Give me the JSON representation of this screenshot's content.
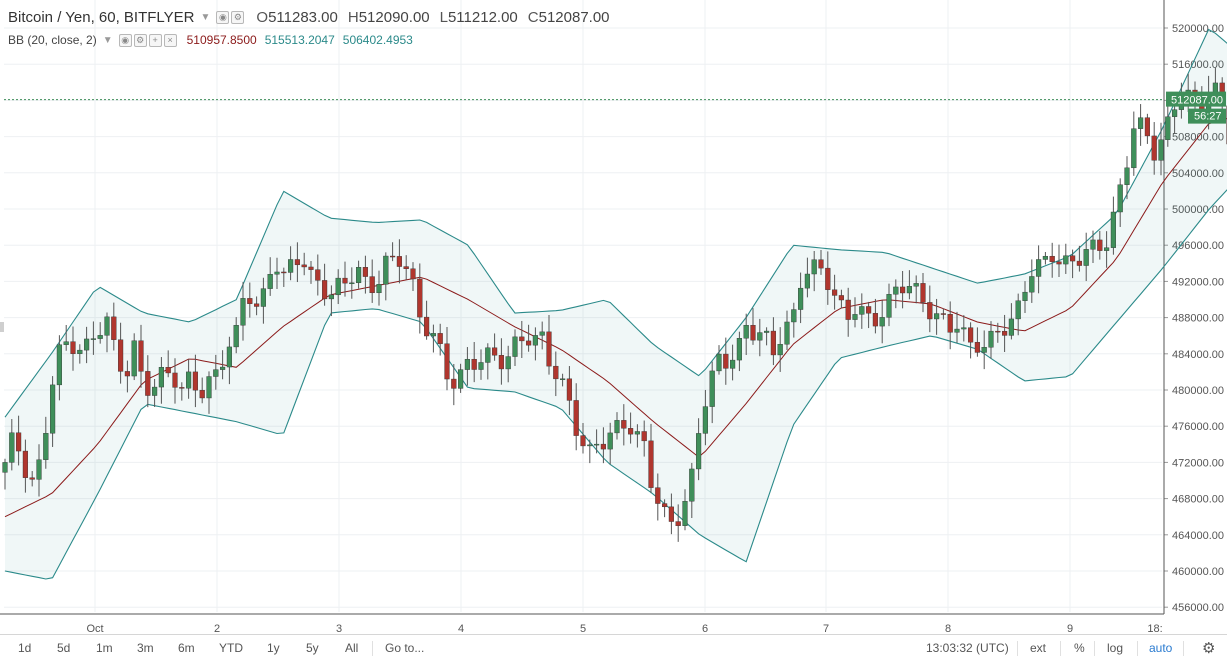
{
  "legend": {
    "symbol": "Bitcoin / Yen, 60, BITFLYER",
    "open_label": "O",
    "open": "511283.00",
    "high_label": "H",
    "high": "512090.00",
    "low_label": "L",
    "low": "511212.00",
    "close_label": "C",
    "close": "512087.00"
  },
  "indicator": {
    "name": "BB (20, close, 2)",
    "basis": "510957.8500",
    "upper": "515513.2047",
    "lower": "506402.4953",
    "basis_color": "#8b1a1a",
    "band_color": "#2b8a8a"
  },
  "price_axis": {
    "ticks": [
      "520000.00",
      "516000.00",
      "512000.00",
      "508000.00",
      "504000.00",
      "500000.00",
      "496000.00",
      "492000.00",
      "488000.00",
      "484000.00",
      "480000.00",
      "476000.00",
      "472000.00",
      "468000.00",
      "464000.00",
      "460000.00",
      "456000.00"
    ],
    "last_price_label": "512087.00",
    "countdown": "56:27"
  },
  "time_axis": {
    "ticks": [
      "Oct",
      "2",
      "3",
      "4",
      "5",
      "6",
      "7",
      "8",
      "9",
      "18:"
    ]
  },
  "bottom_bar": {
    "ranges": [
      "1d",
      "5d",
      "1m",
      "3m",
      "6m",
      "YTD",
      "1y",
      "5y",
      "All"
    ],
    "goto": "Go to...",
    "clock": "13:03:32 (UTC)",
    "ext": "ext",
    "percent": "%",
    "log": "log",
    "auto": "auto"
  },
  "chart_data": {
    "type": "candlestick",
    "title": "Bitcoin / Yen, 60, BITFLYER",
    "ylim": [
      455000,
      522000
    ],
    "x_ticks": [
      "Oct",
      "2",
      "3",
      "4",
      "5",
      "6",
      "7",
      "8",
      "9"
    ],
    "up_color": "#3f8f5a",
    "down_color": "#b0362e",
    "bar_count": 189,
    "close_path": [
      [
        0,
        471500
      ],
      [
        2,
        475000
      ],
      [
        4,
        472000
      ],
      [
        6,
        470000
      ],
      [
        8,
        472500
      ],
      [
        10,
        480000
      ],
      [
        12,
        484500
      ],
      [
        14,
        485500
      ],
      [
        16,
        485000
      ],
      [
        18,
        484800
      ],
      [
        20,
        486000
      ],
      [
        22,
        487500
      ],
      [
        24,
        484000
      ],
      [
        26,
        482000
      ],
      [
        28,
        485000
      ],
      [
        30,
        479500
      ],
      [
        32,
        480000
      ],
      [
        34,
        482000
      ],
      [
        36,
        482500
      ],
      [
        38,
        480000
      ],
      [
        40,
        481000
      ],
      [
        42,
        479000
      ],
      [
        44,
        481000
      ],
      [
        46,
        482500
      ],
      [
        48,
        485000
      ],
      [
        50,
        486000
      ],
      [
        52,
        491000
      ],
      [
        54,
        489000
      ],
      [
        56,
        491000
      ],
      [
        58,
        495000
      ],
      [
        60,
        492000
      ],
      [
        62,
        493500
      ],
      [
        64,
        494800
      ],
      [
        66,
        493000
      ],
      [
        68,
        492000
      ],
      [
        70,
        490000
      ],
      [
        72,
        491000
      ],
      [
        74,
        492000
      ],
      [
        76,
        494000
      ],
      [
        78,
        492000
      ],
      [
        80,
        491000
      ],
      [
        82,
        493500
      ],
      [
        84,
        494200
      ],
      [
        86,
        495000
      ],
      [
        88,
        492000
      ],
      [
        90,
        487000
      ],
      [
        92,
        486000
      ],
      [
        94,
        484000
      ],
      [
        96,
        481000
      ],
      [
        98,
        481800
      ],
      [
        100,
        483000
      ],
      [
        102,
        482500
      ],
      [
        104,
        483500
      ],
      [
        106,
        484000
      ],
      [
        108,
        483500
      ],
      [
        110,
        485000
      ],
      [
        112,
        485500
      ],
      [
        114,
        485000
      ],
      [
        116,
        486000
      ],
      [
        118,
        483000
      ],
      [
        120,
        481000
      ],
      [
        122,
        478000
      ],
      [
        124,
        474000
      ],
      [
        126,
        473000
      ],
      [
        128,
        475000
      ],
      [
        130,
        474500
      ],
      [
        132,
        475500
      ],
      [
        134,
        476000
      ],
      [
        136,
        475000
      ],
      [
        138,
        474500
      ],
      [
        140,
        469000
      ],
      [
        142,
        466000
      ],
      [
        144,
        465000
      ],
      [
        146,
        466000
      ],
      [
        148,
        470000
      ],
      [
        150,
        477000
      ],
      [
        152,
        480000
      ],
      [
        154,
        483000
      ],
      [
        156,
        483000
      ],
      [
        158,
        484500
      ],
      [
        160,
        487500
      ],
      [
        162,
        486000
      ],
      [
        164,
        485500
      ],
      [
        166,
        484000
      ],
      [
        168,
        487000
      ],
      [
        170,
        488000
      ],
      [
        172,
        492500
      ],
      [
        174,
        493000
      ],
      [
        176,
        493200
      ],
      [
        178,
        492000
      ],
      [
        180,
        490000
      ],
      [
        182,
        488000
      ],
      [
        184,
        489000
      ],
      [
        186,
        487500
      ],
      [
        188,
        488000
      ],
      [
        190,
        489500
      ],
      [
        192,
        491000
      ],
      [
        194,
        491200
      ],
      [
        196,
        491000
      ],
      [
        198,
        490200
      ],
      [
        200,
        489000
      ],
      [
        202,
        488000
      ],
      [
        204,
        486500
      ],
      [
        206,
        487000
      ],
      [
        208,
        485000
      ],
      [
        210,
        485500
      ],
      [
        212,
        485200
      ],
      [
        214,
        486000
      ],
      [
        216,
        486500
      ],
      [
        218,
        488000
      ],
      [
        220,
        491500
      ],
      [
        222,
        494000
      ],
      [
        224,
        493500
      ],
      [
        226,
        494500
      ],
      [
        228,
        494000
      ],
      [
        230,
        494500
      ],
      [
        232,
        495000
      ],
      [
        234,
        495500
      ],
      [
        236,
        495000
      ],
      [
        238,
        496500
      ],
      [
        240,
        501000
      ],
      [
        242,
        505000
      ],
      [
        244,
        510000
      ],
      [
        246,
        508000
      ],
      [
        248,
        506000
      ],
      [
        250,
        508500
      ],
      [
        252,
        511000
      ],
      [
        254,
        513000
      ],
      [
        256,
        512000
      ],
      [
        258,
        510500
      ],
      [
        260,
        514000
      ],
      [
        262,
        513500
      ],
      [
        264,
        508000
      ],
      [
        266,
        507500
      ],
      [
        268,
        510000
      ],
      [
        270,
        511000
      ],
      [
        272,
        511500
      ],
      [
        274,
        511600
      ],
      [
        276,
        512087
      ]
    ],
    "series": [
      {
        "name": "BB (20, close, 2)",
        "basis_path": [
          [
            0,
            466000
          ],
          [
            10,
            468500
          ],
          [
            20,
            474000
          ],
          [
            30,
            481000
          ],
          [
            40,
            483500
          ],
          [
            50,
            482500
          ],
          [
            60,
            487000
          ],
          [
            70,
            490500
          ],
          [
            80,
            491500
          ],
          [
            90,
            492500
          ],
          [
            100,
            490000
          ],
          [
            110,
            487000
          ],
          [
            120,
            484500
          ],
          [
            130,
            481000
          ],
          [
            140,
            476500
          ],
          [
            150,
            472500
          ],
          [
            160,
            478500
          ],
          [
            170,
            485000
          ],
          [
            180,
            489000
          ],
          [
            190,
            490000
          ],
          [
            200,
            489500
          ],
          [
            210,
            487500
          ],
          [
            220,
            486500
          ],
          [
            230,
            489000
          ],
          [
            240,
            494500
          ],
          [
            250,
            503000
          ],
          [
            260,
            509500
          ],
          [
            270,
            510800
          ],
          [
            276,
            510958
          ]
        ],
        "upper_path": [
          [
            0,
            477000
          ],
          [
            10,
            484000
          ],
          [
            20,
            491500
          ],
          [
            30,
            488500
          ],
          [
            40,
            487500
          ],
          [
            50,
            490000
          ],
          [
            60,
            502000
          ],
          [
            70,
            499000
          ],
          [
            80,
            498500
          ],
          [
            90,
            498800
          ],
          [
            100,
            496000
          ],
          [
            110,
            488500
          ],
          [
            120,
            488800
          ],
          [
            130,
            490000
          ],
          [
            140,
            485000
          ],
          [
            150,
            481500
          ],
          [
            160,
            488000
          ],
          [
            170,
            496000
          ],
          [
            180,
            495500
          ],
          [
            190,
            495200
          ],
          [
            200,
            493500
          ],
          [
            210,
            491800
          ],
          [
            220,
            492800
          ],
          [
            230,
            494800
          ],
          [
            240,
            499500
          ],
          [
            250,
            509000
          ],
          [
            260,
            520000
          ],
          [
            270,
            515600
          ],
          [
            276,
            515513
          ]
        ],
        "lower_path": [
          [
            0,
            460000
          ],
          [
            10,
            459000
          ],
          [
            20,
            468500
          ],
          [
            30,
            478500
          ],
          [
            40,
            477500
          ],
          [
            50,
            476500
          ],
          [
            60,
            475000
          ],
          [
            70,
            488500
          ],
          [
            80,
            489000
          ],
          [
            90,
            487500
          ],
          [
            100,
            480200
          ],
          [
            110,
            479800
          ],
          [
            120,
            478000
          ],
          [
            130,
            472000
          ],
          [
            140,
            468500
          ],
          [
            150,
            464000
          ],
          [
            160,
            461000
          ],
          [
            170,
            476000
          ],
          [
            180,
            483500
          ],
          [
            190,
            484800
          ],
          [
            200,
            486000
          ],
          [
            210,
            484500
          ],
          [
            220,
            481000
          ],
          [
            230,
            481500
          ],
          [
            240,
            487500
          ],
          [
            250,
            493500
          ],
          [
            260,
            500000
          ],
          [
            270,
            505500
          ],
          [
            276,
            506402
          ]
        ]
      }
    ]
  }
}
